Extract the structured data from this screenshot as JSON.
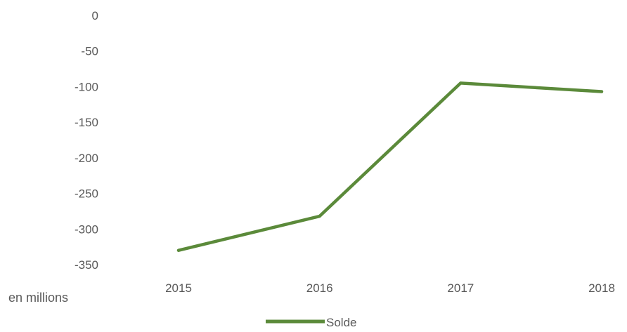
{
  "chart_data": {
    "type": "line",
    "x": [
      "2015",
      "2016",
      "2017",
      "2018"
    ],
    "series": [
      {
        "name": "Solde",
        "values": [
          -330,
          -282,
          -95,
          -107
        ]
      }
    ],
    "ylim": [
      -350,
      0
    ],
    "yticks": [
      "0",
      "-50",
      "-100",
      "-150",
      "-200",
      "-250",
      "-300",
      "-350"
    ],
    "unit_label": "en millions",
    "grid": false,
    "legend_position": "bottom",
    "line_color": "#5b8a3a",
    "text_color": "#595959"
  }
}
